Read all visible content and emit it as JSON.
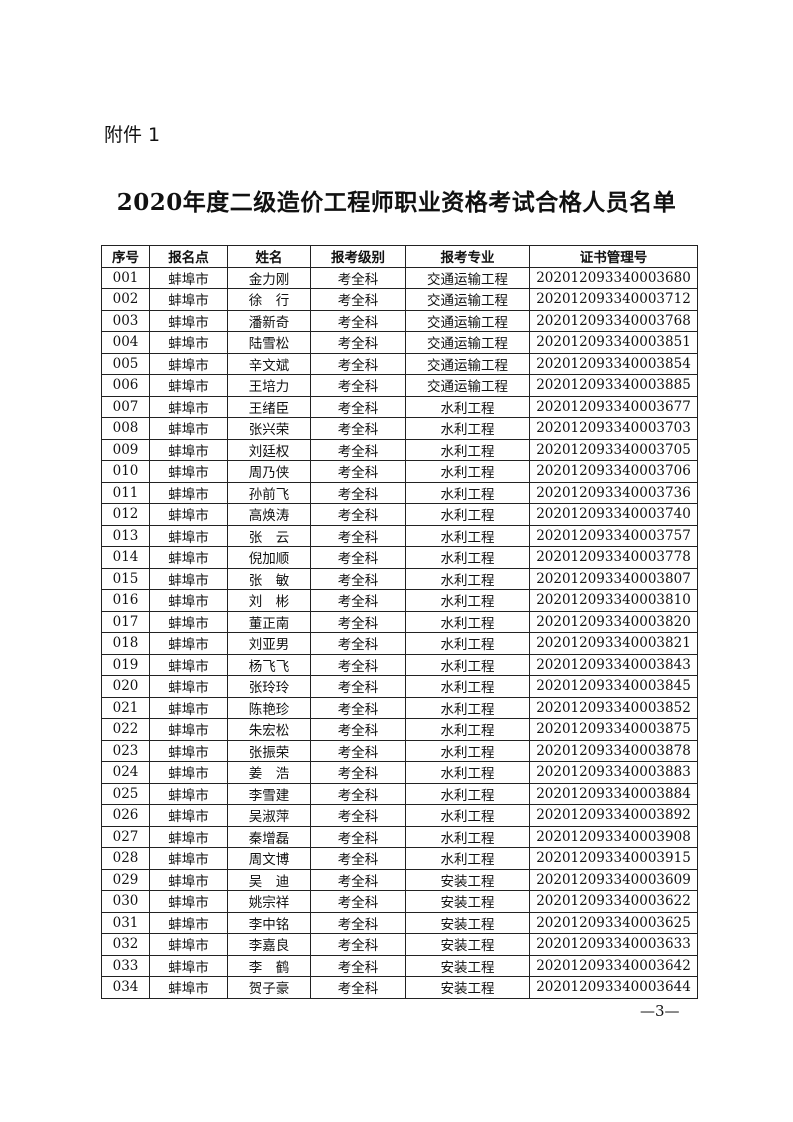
{
  "attachment_label": "附件 1",
  "title": "2020年度二级造价工程师职业资格考试合格人员名单",
  "table": {
    "headers": [
      "序号",
      "报名点",
      "姓名",
      "报考级别",
      "报考专业",
      "证书管理号"
    ],
    "rows": [
      [
        "001",
        "蚌埠市",
        "金力刚",
        "考全科",
        "交通运输工程",
        "202012093340003680"
      ],
      [
        "002",
        "蚌埠市",
        "徐　行",
        "考全科",
        "交通运输工程",
        "202012093340003712"
      ],
      [
        "003",
        "蚌埠市",
        "潘新奇",
        "考全科",
        "交通运输工程",
        "202012093340003768"
      ],
      [
        "004",
        "蚌埠市",
        "陆雪松",
        "考全科",
        "交通运输工程",
        "202012093340003851"
      ],
      [
        "005",
        "蚌埠市",
        "辛文斌",
        "考全科",
        "交通运输工程",
        "202012093340003854"
      ],
      [
        "006",
        "蚌埠市",
        "王培力",
        "考全科",
        "交通运输工程",
        "202012093340003885"
      ],
      [
        "007",
        "蚌埠市",
        "王绪臣",
        "考全科",
        "水利工程",
        "202012093340003677"
      ],
      [
        "008",
        "蚌埠市",
        "张兴荣",
        "考全科",
        "水利工程",
        "202012093340003703"
      ],
      [
        "009",
        "蚌埠市",
        "刘廷权",
        "考全科",
        "水利工程",
        "202012093340003705"
      ],
      [
        "010",
        "蚌埠市",
        "周乃侠",
        "考全科",
        "水利工程",
        "202012093340003706"
      ],
      [
        "011",
        "蚌埠市",
        "孙前飞",
        "考全科",
        "水利工程",
        "202012093340003736"
      ],
      [
        "012",
        "蚌埠市",
        "高焕涛",
        "考全科",
        "水利工程",
        "202012093340003740"
      ],
      [
        "013",
        "蚌埠市",
        "张　云",
        "考全科",
        "水利工程",
        "202012093340003757"
      ],
      [
        "014",
        "蚌埠市",
        "倪加顺",
        "考全科",
        "水利工程",
        "202012093340003778"
      ],
      [
        "015",
        "蚌埠市",
        "张　敏",
        "考全科",
        "水利工程",
        "202012093340003807"
      ],
      [
        "016",
        "蚌埠市",
        "刘　彬",
        "考全科",
        "水利工程",
        "202012093340003810"
      ],
      [
        "017",
        "蚌埠市",
        "董正南",
        "考全科",
        "水利工程",
        "202012093340003820"
      ],
      [
        "018",
        "蚌埠市",
        "刘亚男",
        "考全科",
        "水利工程",
        "202012093340003821"
      ],
      [
        "019",
        "蚌埠市",
        "杨飞飞",
        "考全科",
        "水利工程",
        "202012093340003843"
      ],
      [
        "020",
        "蚌埠市",
        "张玲玲",
        "考全科",
        "水利工程",
        "202012093340003845"
      ],
      [
        "021",
        "蚌埠市",
        "陈艳珍",
        "考全科",
        "水利工程",
        "202012093340003852"
      ],
      [
        "022",
        "蚌埠市",
        "朱宏松",
        "考全科",
        "水利工程",
        "202012093340003875"
      ],
      [
        "023",
        "蚌埠市",
        "张振荣",
        "考全科",
        "水利工程",
        "202012093340003878"
      ],
      [
        "024",
        "蚌埠市",
        "姜　浩",
        "考全科",
        "水利工程",
        "202012093340003883"
      ],
      [
        "025",
        "蚌埠市",
        "李雪建",
        "考全科",
        "水利工程",
        "202012093340003884"
      ],
      [
        "026",
        "蚌埠市",
        "吴淑萍",
        "考全科",
        "水利工程",
        "202012093340003892"
      ],
      [
        "027",
        "蚌埠市",
        "秦增磊",
        "考全科",
        "水利工程",
        "202012093340003908"
      ],
      [
        "028",
        "蚌埠市",
        "周文博",
        "考全科",
        "水利工程",
        "202012093340003915"
      ],
      [
        "029",
        "蚌埠市",
        "吴　迪",
        "考全科",
        "安装工程",
        "202012093340003609"
      ],
      [
        "030",
        "蚌埠市",
        "姚宗祥",
        "考全科",
        "安装工程",
        "202012093340003622"
      ],
      [
        "031",
        "蚌埠市",
        "李中铭",
        "考全科",
        "安装工程",
        "202012093340003625"
      ],
      [
        "032",
        "蚌埠市",
        "李嘉良",
        "考全科",
        "安装工程",
        "202012093340003633"
      ],
      [
        "033",
        "蚌埠市",
        "李　鹤",
        "考全科",
        "安装工程",
        "202012093340003642"
      ],
      [
        "034",
        "蚌埠市",
        "贺子豪",
        "考全科",
        "安装工程",
        "202012093340003644"
      ]
    ]
  },
  "page_number": "—3—"
}
